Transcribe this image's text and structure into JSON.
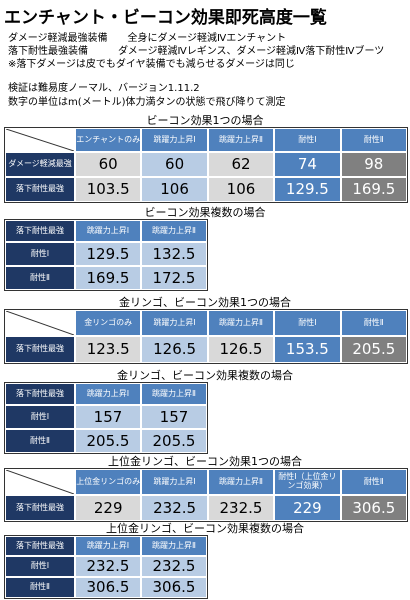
{
  "header": {
    "title": "エンチャント・ビーコン効果即死高度一覧",
    "lines": [
      "ダメージ軽減最強装備　　全身にダメージ軽減Ⅳエンチャント",
      "落下耐性最強装備　　　ダメージ軽減Ⅳレギンス、ダメージ軽減Ⅳ落下耐性Ⅳブーツ",
      "※落下ダメージは皮でもダイヤ装備でも減らせるダメージは同じ"
    ],
    "notes": [
      "検証は難易度ノーマル、バージョン1.11.2",
      "数字の単位はm(メートル)体力満タンの状態で飛び降りて測定"
    ]
  },
  "tables": [
    {
      "caption": "ビーコン効果1つの場合",
      "columns": [
        "エンチャントのみ",
        "跳躍力上昇Ⅰ",
        "跳躍力上昇Ⅱ",
        "耐性Ⅰ",
        "耐性Ⅱ"
      ],
      "rows": [
        {
          "label": "ダメージ軽減最強",
          "values": [
            60,
            60,
            62,
            74,
            98
          ]
        },
        {
          "label": "落下耐性最強",
          "values": [
            103.5,
            106,
            106,
            129.5,
            169.5
          ]
        }
      ]
    },
    {
      "caption": "ビーコン効果複数の場合",
      "corner": "落下耐性最強",
      "columns": [
        "跳躍力上昇Ⅰ",
        "跳躍力上昇Ⅱ"
      ],
      "rows": [
        {
          "label": "耐性Ⅰ",
          "values": [
            129.5,
            132.5
          ]
        },
        {
          "label": "耐性Ⅱ",
          "values": [
            169.5,
            172.5
          ]
        }
      ]
    },
    {
      "caption": "金リンゴ、ビーコン効果1つの場合",
      "columns": [
        "金リンゴのみ",
        "跳躍力上昇Ⅰ",
        "跳躍力上昇Ⅱ",
        "耐性Ⅰ",
        "耐性Ⅱ"
      ],
      "rows": [
        {
          "label": "落下耐性最強",
          "values": [
            123.5,
            126.5,
            126.5,
            153.5,
            205.5
          ]
        }
      ]
    },
    {
      "caption": "金リンゴ、ビーコン効果複数の場合",
      "corner": "落下耐性最強",
      "columns": [
        "跳躍力上昇Ⅰ",
        "跳躍力上昇Ⅱ"
      ],
      "rows": [
        {
          "label": "耐性Ⅰ",
          "values": [
            157,
            157
          ]
        },
        {
          "label": "耐性Ⅱ",
          "values": [
            205.5,
            205.5
          ]
        }
      ]
    },
    {
      "caption": "上位金リンゴ、ビーコン効果1つの場合",
      "columns": [
        "上位金リンゴのみ",
        "跳躍力上昇Ⅰ",
        "跳躍力上昇Ⅱ",
        "耐性Ⅰ（上位金リンゴ効果）",
        "耐性Ⅱ"
      ],
      "rows": [
        {
          "label": "落下耐性最強",
          "values": [
            229,
            232.5,
            232.5,
            229,
            306.5
          ]
        }
      ]
    },
    {
      "caption": "上位金リンゴ、ビーコン効果複数の場合",
      "corner": "落下耐性最強",
      "columns": [
        "跳躍力上昇Ⅰ",
        "跳躍力上昇Ⅱ"
      ],
      "rows": [
        {
          "label": "耐性Ⅰ",
          "values": [
            232.5,
            232.5
          ]
        },
        {
          "label": "耐性Ⅱ",
          "values": [
            306.5,
            306.5
          ]
        }
      ]
    }
  ]
}
